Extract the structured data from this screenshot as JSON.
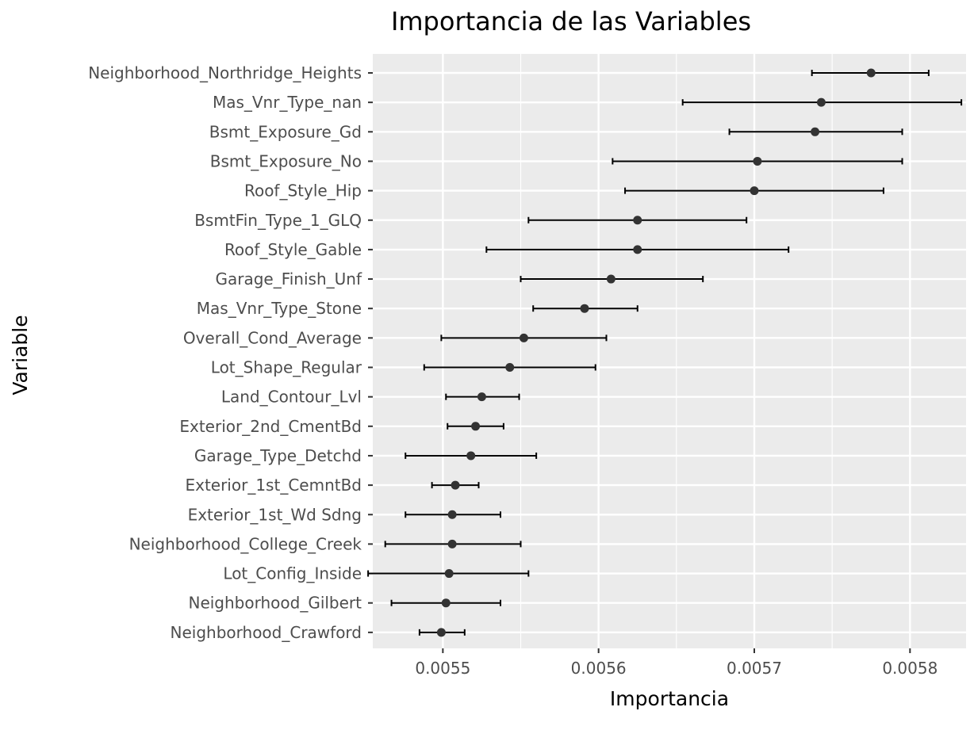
{
  "chart_data": {
    "type": "scatter",
    "title": "Importancia de las Variables",
    "xlabel": "Importancia",
    "ylabel": "Variable",
    "xlim": [
      0.005455,
      0.005836
    ],
    "xticks": [
      0.0055,
      0.0056,
      0.0057,
      0.0058
    ],
    "xtick_labels": [
      "0.0055",
      "0.0056",
      "0.0057",
      "0.0058"
    ],
    "grid": true,
    "colors": {
      "point": "#333333",
      "errorbar": "#000000",
      "panel": "#ebebeb",
      "grid": "#ffffff"
    },
    "points": [
      {
        "label": "Neighborhood_Northridge_Heights",
        "value": 0.005775,
        "low": 0.005737,
        "high": 0.005812
      },
      {
        "label": "Mas_Vnr_Type_nan",
        "value": 0.005743,
        "low": 0.005654,
        "high": 0.005833
      },
      {
        "label": "Bsmt_Exposure_Gd",
        "value": 0.005739,
        "low": 0.005684,
        "high": 0.005795
      },
      {
        "label": "Bsmt_Exposure_No",
        "value": 0.005702,
        "low": 0.005609,
        "high": 0.005795
      },
      {
        "label": "Roof_Style_Hip",
        "value": 0.0057,
        "low": 0.005617,
        "high": 0.005783
      },
      {
        "label": "BsmtFin_Type_1_GLQ",
        "value": 0.005625,
        "low": 0.005555,
        "high": 0.005695
      },
      {
        "label": "Roof_Style_Gable",
        "value": 0.005625,
        "low": 0.005528,
        "high": 0.005722
      },
      {
        "label": "Garage_Finish_Unf",
        "value": 0.005608,
        "low": 0.00555,
        "high": 0.005667
      },
      {
        "label": "Mas_Vnr_Type_Stone",
        "value": 0.005591,
        "low": 0.005558,
        "high": 0.005625
      },
      {
        "label": "Overall_Cond_Average",
        "value": 0.005552,
        "low": 0.005499,
        "high": 0.005605
      },
      {
        "label": "Lot_Shape_Regular",
        "value": 0.005543,
        "low": 0.005488,
        "high": 0.005598
      },
      {
        "label": "Land_Contour_Lvl",
        "value": 0.005525,
        "low": 0.005502,
        "high": 0.005549
      },
      {
        "label": "Exterior_2nd_CmentBd",
        "value": 0.005521,
        "low": 0.005503,
        "high": 0.005539
      },
      {
        "label": "Garage_Type_Detchd",
        "value": 0.005518,
        "low": 0.005476,
        "high": 0.00556
      },
      {
        "label": "Exterior_1st_CemntBd",
        "value": 0.005508,
        "low": 0.005493,
        "high": 0.005523
      },
      {
        "label": "Exterior_1st_Wd Sdng",
        "value": 0.005506,
        "low": 0.005476,
        "high": 0.005537
      },
      {
        "label": "Neighborhood_College_Creek",
        "value": 0.005506,
        "low": 0.005463,
        "high": 0.00555
      },
      {
        "label": "Lot_Config_Inside",
        "value": 0.005504,
        "low": 0.005452,
        "high": 0.005555
      },
      {
        "label": "Neighborhood_Gilbert",
        "value": 0.005502,
        "low": 0.005467,
        "high": 0.005537
      },
      {
        "label": "Neighborhood_Crawford",
        "value": 0.005499,
        "low": 0.005485,
        "high": 0.005514
      }
    ]
  }
}
